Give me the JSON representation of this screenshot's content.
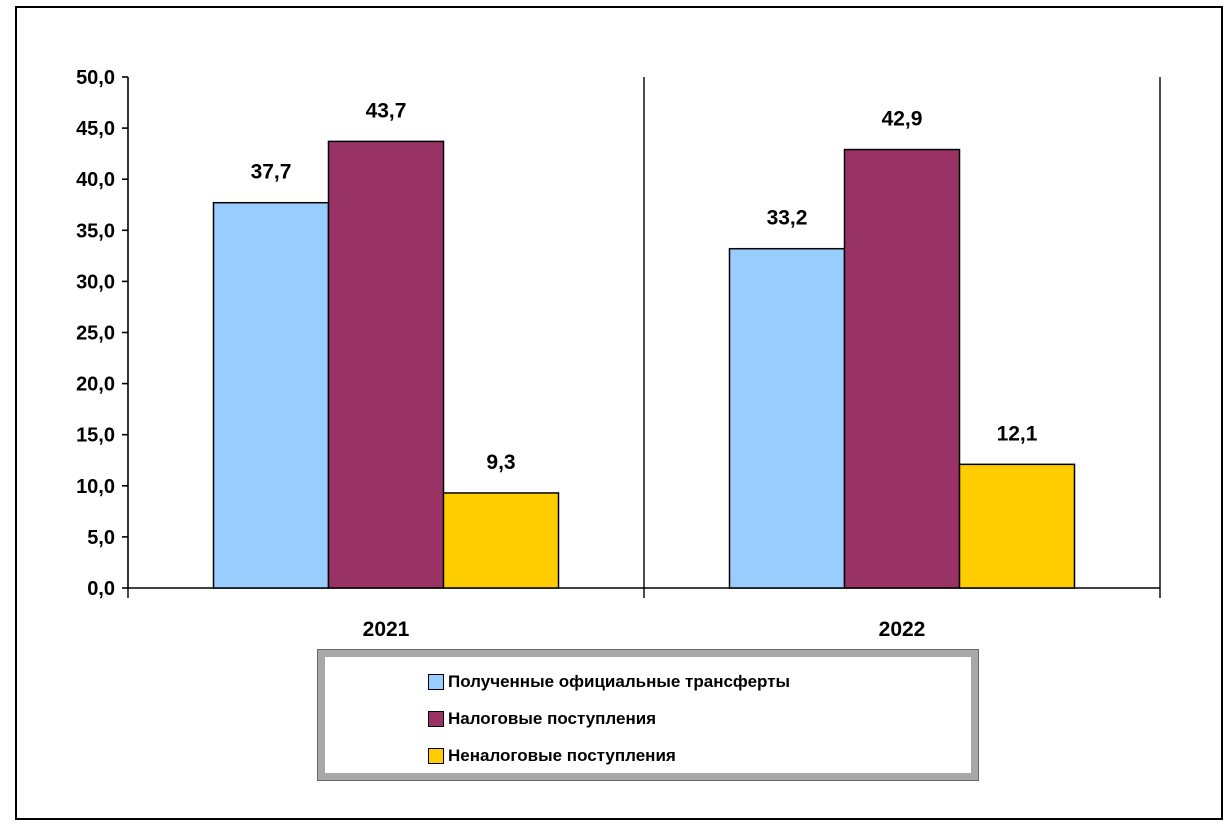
{
  "chart_data": {
    "type": "bar",
    "categories": [
      "2021",
      "2022"
    ],
    "series": [
      {
        "name": "Полученные официальные трансферты",
        "values": [
          37.7,
          33.2
        ],
        "labels": [
          "37,7",
          "33,2"
        ],
        "color": "#99ccff"
      },
      {
        "name": "Налоговые поступления",
        "values": [
          43.7,
          42.9
        ],
        "labels": [
          "43,7",
          "42,9"
        ],
        "color": "#993366"
      },
      {
        "name": "Неналоговые поступления",
        "values": [
          9.3,
          12.1
        ],
        "labels": [
          "9,3",
          "12,1"
        ],
        "color": "#ffcc00"
      }
    ],
    "ylim": [
      0,
      50
    ],
    "yticks": [
      0,
      5,
      10,
      15,
      20,
      25,
      30,
      35,
      40,
      45,
      50
    ],
    "ytick_labels": [
      "0,0",
      "5,0",
      "10,0",
      "15,0",
      "20,0",
      "25,0",
      "30,0",
      "35,0",
      "40,0",
      "45,0",
      "50,0"
    ],
    "title": "",
    "xlabel": "",
    "ylabel": "",
    "grid": false,
    "legend_position": "bottom"
  }
}
